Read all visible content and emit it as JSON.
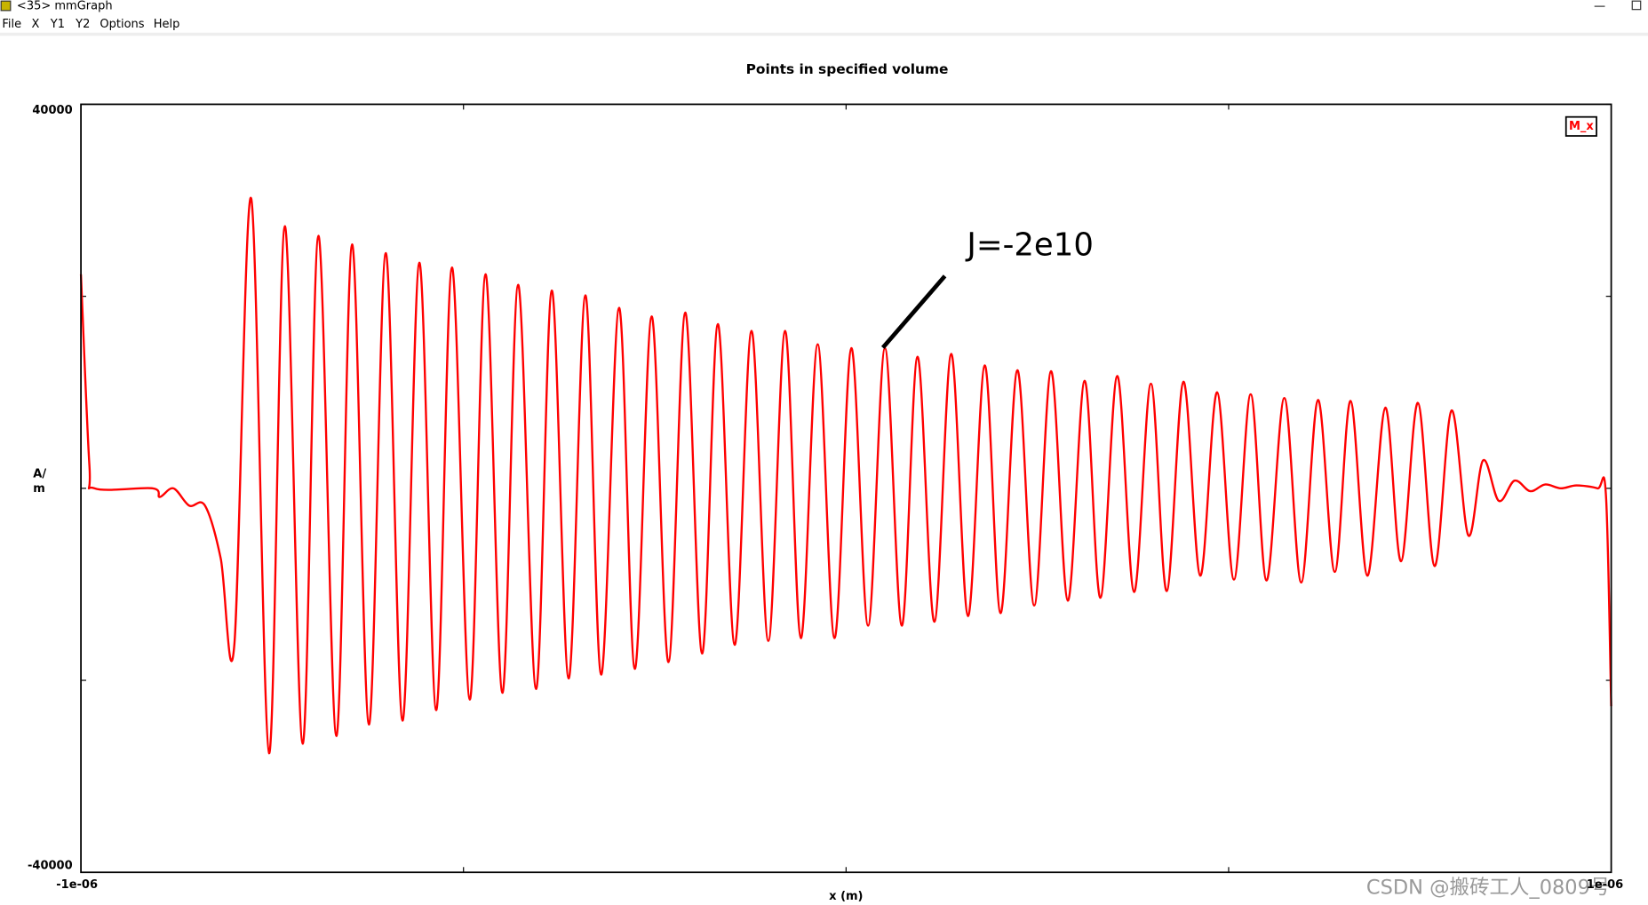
{
  "window": {
    "title": "<35> mmGraph",
    "menu": [
      "File",
      "X",
      "Y1",
      "Y2",
      "Options",
      "Help"
    ],
    "watermark": "CSDN @搬砖工人_0809号"
  },
  "chart_data": {
    "type": "line",
    "title": "Points in specified volume",
    "x_label": "x (m)",
    "y_label": "A/m",
    "annotations": [
      {
        "text": "J=-2e10"
      }
    ],
    "xlim": [
      -1e-06,
      1e-06
    ],
    "ylim": [
      -40000,
      40000
    ],
    "xticks": [
      {
        "value": -1e-06,
        "label": "-1e-06"
      },
      {
        "value": -5e-07,
        "label": null
      },
      {
        "value": 0,
        "label": null
      },
      {
        "value": 5e-07,
        "label": null
      },
      {
        "value": 1e-06,
        "label": "1e-06"
      }
    ],
    "yticks": [
      -40000,
      {
        "value": -20000,
        "label": null
      },
      {
        "value": 0,
        "label": null
      },
      {
        "value": 20000,
        "label": null
      },
      40000
    ],
    "legend": "upper right",
    "x": [
      -1e-06,
      -9.89e-07,
      -9.821e-07,
      -9.066e-07,
      -8.97e-07,
      -8.791e-07,
      -8.585e-07,
      -8.379e-07,
      -8.173e-07,
      -7.995e-07,
      -7.775e-07,
      -7.541e-07,
      -7.335e-07,
      -7.102e-07,
      -6.896e-07,
      -6.662e-07,
      -6.456e-07,
      -6.236e-07,
      -6.016e-07,
      -5.797e-07,
      -5.577e-07,
      -5.357e-07,
      -5.151e-07,
      -4.918e-07,
      -4.712e-07,
      -4.492e-07,
      -4.286e-07,
      -4.052e-07,
      -3.846e-07,
      -3.626e-07,
      -3.407e-07,
      -3.201e-07,
      -2.967e-07,
      -2.761e-07,
      -2.541e-07,
      -2.321e-07,
      -2.102e-07,
      -1.882e-07,
      -1.676e-07,
      -1.456e-07,
      -1.236e-07,
      -1.016e-07,
      -7.97e-08,
      -5.91e-08,
      -3.71e-08,
      -1.51e-08,
      6.9e-09,
      2.88e-08,
      5.08e-08,
      7.28e-08,
      9.34e-08,
      1.154e-07,
      1.374e-07,
      1.593e-07,
      1.813e-07,
      2.019e-07,
      2.239e-07,
      2.459e-07,
      2.679e-07,
      2.898e-07,
      3.118e-07,
      3.324e-07,
      3.544e-07,
      3.764e-07,
      3.984e-07,
      4.19e-07,
      4.409e-07,
      4.629e-07,
      4.849e-07,
      5.069e-07,
      5.288e-07,
      5.495e-07,
      5.728e-07,
      5.948e-07,
      6.168e-07,
      6.387e-07,
      6.593e-07,
      6.813e-07,
      7.047e-07,
      7.253e-07,
      7.473e-07,
      7.692e-07,
      7.912e-07,
      8.132e-07,
      8.324e-07,
      8.53e-07,
      8.736e-07,
      8.942e-07,
      9.135e-07,
      9.341e-07,
      9.547e-07,
      9.821e-07,
      9.931e-07,
      1e-06
    ],
    "series": [
      {
        "name": "M_x",
        "color": "#ff0000",
        "values": [
          22300,
          2500,
          0,
          0,
          -900,
          0,
          -1800,
          -1800,
          -7300,
          -16300,
          30200,
          -27600,
          27300,
          -26600,
          26300,
          -25800,
          25400,
          -24600,
          24500,
          -24200,
          23500,
          -23100,
          23000,
          -22000,
          22300,
          -21300,
          21200,
          -20900,
          20600,
          -19800,
          20100,
          -19400,
          18800,
          -18800,
          17900,
          -18100,
          18300,
          -17200,
          17100,
          -16300,
          16400,
          -15900,
          16400,
          -15600,
          15000,
          -15600,
          14600,
          -14300,
          14600,
          -14300,
          13700,
          -13900,
          14000,
          -13300,
          12800,
          -13000,
          12300,
          -12200,
          12200,
          -11700,
          11200,
          -11400,
          11700,
          -10800,
          10900,
          -10700,
          11100,
          -9100,
          10000,
          -9500,
          9800,
          -9600,
          9400,
          -9800,
          9200,
          -8700,
          9100,
          -9100,
          8400,
          -7600,
          8900,
          -8100,
          8100,
          -4900,
          2900,
          -1300,
          800,
          -300,
          400,
          0,
          300,
          0,
          -700,
          -22700
        ]
      }
    ]
  }
}
